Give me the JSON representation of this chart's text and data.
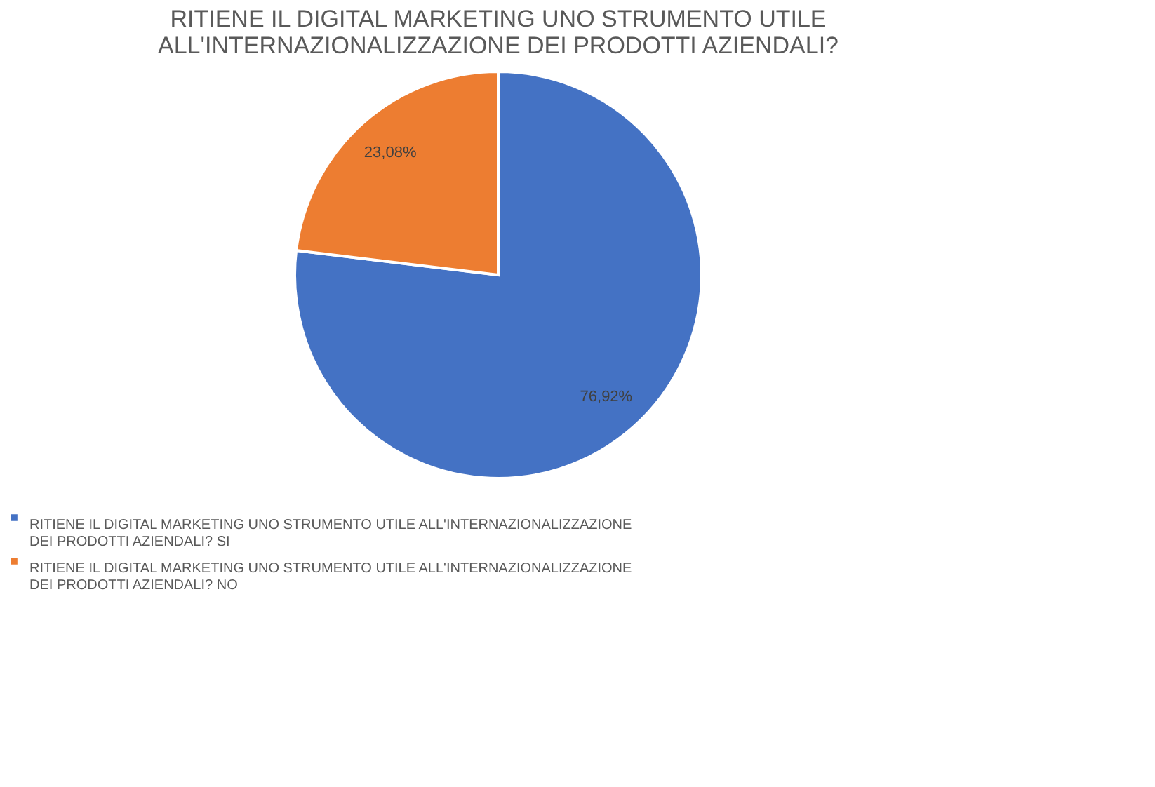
{
  "chart_data": {
    "type": "pie",
    "title": "RITIENE IL DIGITAL MARKETING UNO STRUMENTO UTILE ALL'INTERNAZIONALIZZAZIONE DEI PRODOTTI AZIENDALI?",
    "categories": [
      "RITIENE IL DIGITAL MARKETING UNO STRUMENTO UTILE ALL'INTERNAZIONALIZZAZIONE DEI PRODOTTI AZIENDALI? SI",
      "RITIENE IL DIGITAL MARKETING UNO STRUMENTO UTILE ALL'INTERNAZIONALIZZAZIONE DEI PRODOTTI AZIENDALI? NO"
    ],
    "values": [
      76.92,
      23.08
    ],
    "colors": [
      "#4472c4",
      "#ed7d31"
    ],
    "value_labels": [
      "76,92%",
      "23,08%"
    ],
    "legend": "bottom"
  }
}
